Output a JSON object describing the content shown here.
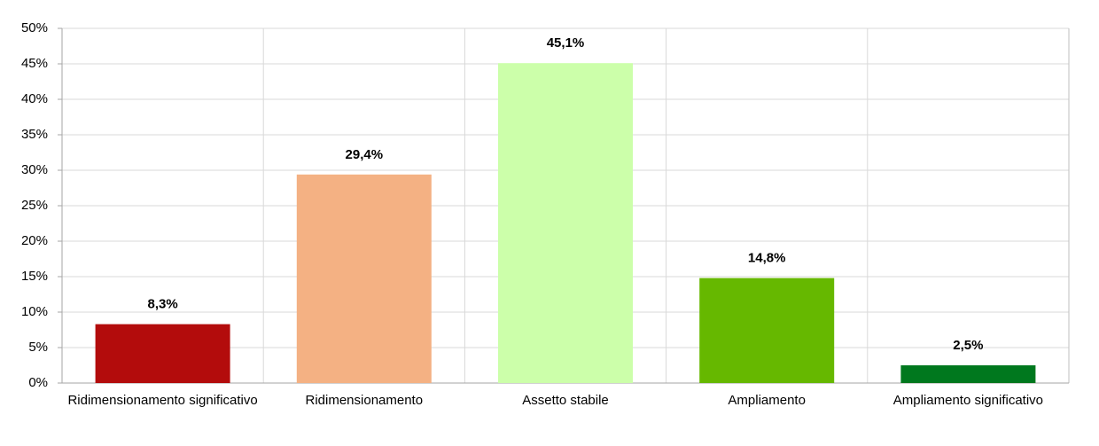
{
  "chart_data": {
    "type": "bar",
    "categories": [
      "Ridimensionamento significativo",
      "Ridimensionamento",
      "Assetto stabile",
      "Ampliamento",
      "Ampliamento significativo"
    ],
    "values": [
      8.3,
      29.4,
      45.1,
      14.8,
      2.5
    ],
    "value_labels": [
      "8,3%",
      "29,4%",
      "45,1%",
      "14,8%",
      "2,5%"
    ],
    "colors": [
      "#b30c0c",
      "#f4b183",
      "#ccffaa",
      "#66b800",
      "#00781e"
    ],
    "ylim": [
      0,
      50
    ],
    "yticks": [
      {
        "value": 0,
        "label": "0%"
      },
      {
        "value": 5,
        "label": "5%"
      },
      {
        "value": 10,
        "label": "10%"
      },
      {
        "value": 15,
        "label": "15%"
      },
      {
        "value": 20,
        "label": "20%"
      },
      {
        "value": 25,
        "label": "25%"
      },
      {
        "value": 30,
        "label": "30%"
      },
      {
        "value": 35,
        "label": "35%"
      },
      {
        "value": 40,
        "label": "40%"
      },
      {
        "value": 45,
        "label": "45%"
      },
      {
        "value": 50,
        "label": "50%"
      }
    ],
    "grid": true
  }
}
